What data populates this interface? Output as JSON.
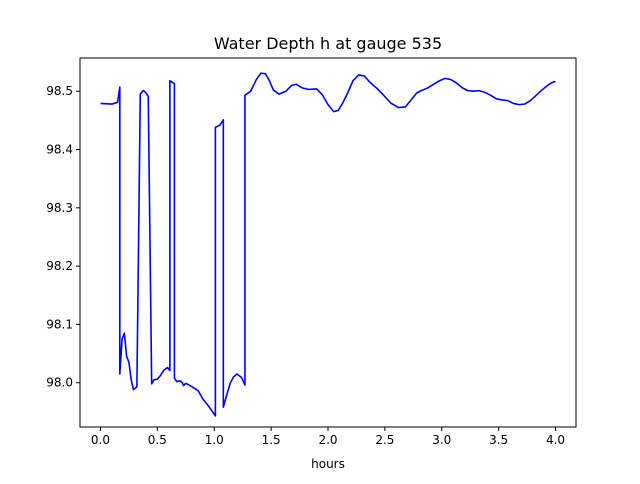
{
  "chart_data": {
    "type": "line",
    "title": "Water Depth h at gauge 535",
    "xlabel": "hours",
    "ylabel": "",
    "xlim": [
      -0.18,
      4.18
    ],
    "ylim": [
      97.924,
      98.557
    ],
    "x_ticks": [
      0.0,
      0.5,
      1.0,
      1.5,
      2.0,
      2.5,
      3.0,
      3.5,
      4.0
    ],
    "x_tick_labels": [
      "0.0",
      "0.5",
      "1.0",
      "1.5",
      "2.0",
      "2.5",
      "3.0",
      "3.5",
      "4.0"
    ],
    "y_ticks": [
      98.0,
      98.1,
      98.2,
      98.3,
      98.4,
      98.5
    ],
    "y_tick_labels": [
      "98.0",
      "98.1",
      "98.2",
      "98.3",
      "98.4",
      "98.5"
    ],
    "grid": false,
    "series": [
      {
        "color": "#0000ff",
        "x": [
          0.0,
          0.1,
          0.15,
          0.17,
          0.17,
          0.19,
          0.21,
          0.23,
          0.25,
          0.27,
          0.29,
          0.32,
          0.35,
          0.37,
          0.37,
          0.38,
          0.4,
          0.42,
          0.45,
          0.45,
          0.47,
          0.5,
          0.53,
          0.56,
          0.59,
          0.61,
          0.61,
          0.65,
          0.65,
          0.67,
          0.7,
          0.72,
          0.73,
          0.75,
          0.78,
          0.82,
          0.86,
          0.9,
          0.95,
          1.01,
          1.01,
          1.05,
          1.08,
          1.08,
          1.1,
          1.14,
          1.17,
          1.2,
          1.24,
          1.27,
          1.27,
          1.32,
          1.37,
          1.41,
          1.45,
          1.48,
          1.52,
          1.57,
          1.63,
          1.68,
          1.72,
          1.77,
          1.83,
          1.9,
          1.95,
          2.0,
          2.05,
          2.09,
          2.13,
          2.18,
          2.22,
          2.27,
          2.32,
          2.37,
          2.43,
          2.48,
          2.55,
          2.62,
          2.68,
          2.73,
          2.78,
          2.82,
          2.87,
          2.93,
          2.98,
          3.03,
          3.08,
          3.13,
          3.18,
          3.23,
          3.28,
          3.33,
          3.38,
          3.43,
          3.48,
          3.53,
          3.58,
          3.63,
          3.68,
          3.73,
          3.78,
          3.83,
          3.88,
          3.93,
          3.97,
          4.0
        ],
        "y": [
          98.479,
          98.478,
          98.481,
          98.507,
          98.015,
          98.075,
          98.085,
          98.045,
          98.035,
          98.005,
          97.988,
          97.993,
          98.495,
          98.5,
          98.5,
          98.501,
          98.497,
          98.491,
          97.998,
          97.998,
          98.005,
          98.006,
          98.013,
          98.022,
          98.026,
          98.021,
          98.518,
          98.513,
          98.008,
          98.002,
          98.003,
          98.0,
          97.995,
          97.999,
          97.996,
          97.991,
          97.986,
          97.972,
          97.96,
          97.943,
          98.438,
          98.442,
          98.451,
          97.958,
          97.972,
          97.999,
          98.01,
          98.015,
          98.009,
          97.996,
          98.493,
          98.5,
          98.52,
          98.531,
          98.53,
          98.52,
          98.502,
          98.495,
          98.5,
          98.51,
          98.512,
          98.506,
          98.503,
          98.504,
          98.494,
          98.477,
          98.465,
          98.467,
          98.48,
          98.5,
          98.518,
          98.528,
          98.526,
          98.515,
          98.505,
          98.495,
          98.48,
          98.472,
          98.473,
          98.485,
          98.497,
          98.501,
          98.505,
          98.512,
          98.518,
          98.522,
          98.52,
          98.514,
          98.506,
          98.501,
          98.5,
          98.501,
          98.498,
          98.493,
          98.487,
          98.485,
          98.484,
          98.479,
          98.477,
          98.478,
          98.484,
          98.493,
          98.502,
          98.51,
          98.515,
          98.517
        ]
      }
    ]
  }
}
